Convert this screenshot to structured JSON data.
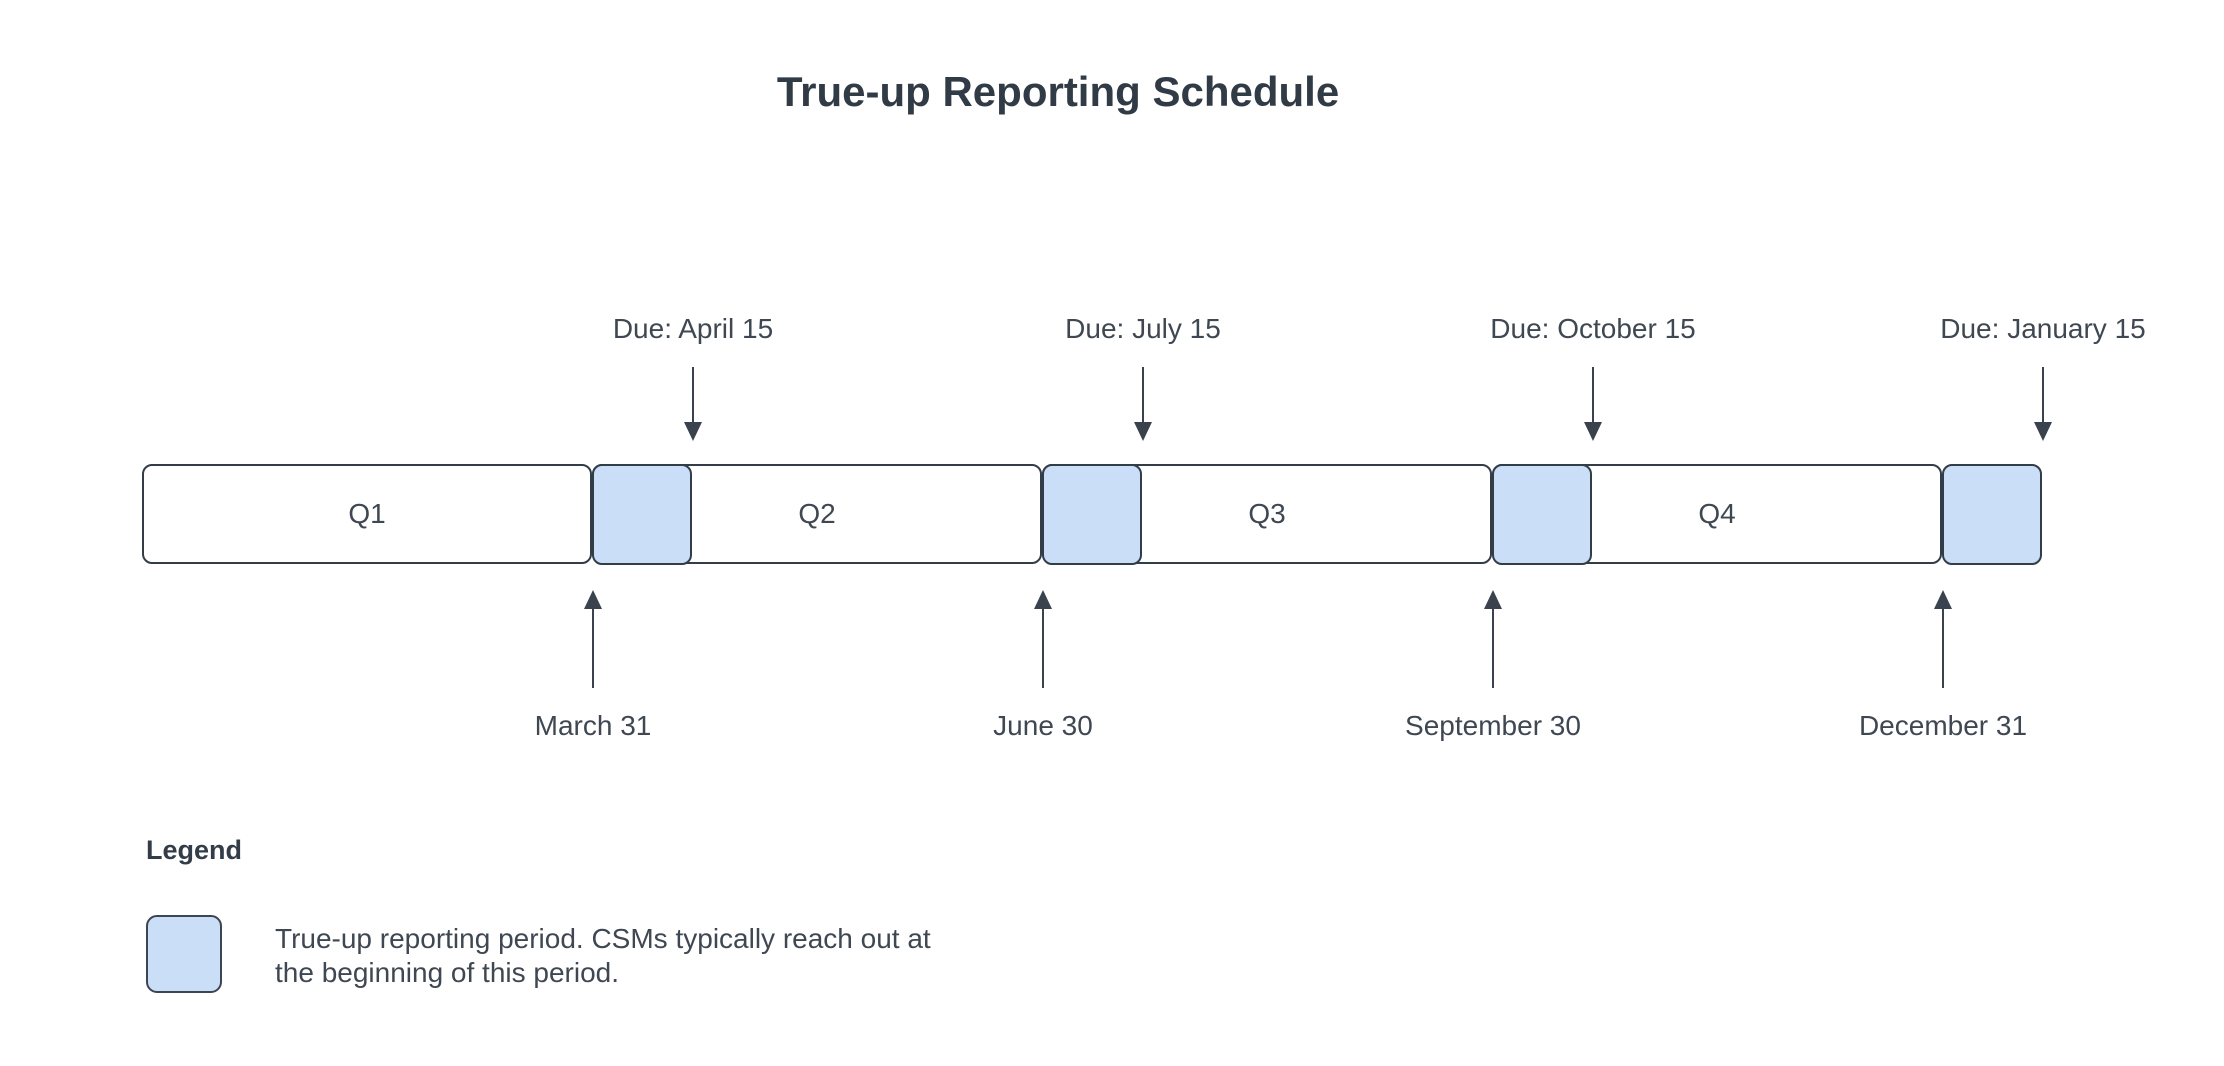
{
  "title": "True-up Reporting Schedule",
  "colors": {
    "background": "#ffffff",
    "period_fill": "#cadef8",
    "stroke": "#333d47",
    "text": "#3f4852"
  },
  "timeline": {
    "quarters": [
      {
        "label": "Q1"
      },
      {
        "label": "Q2"
      },
      {
        "label": "Q3"
      },
      {
        "label": "Q4"
      }
    ],
    "due_labels": [
      {
        "label": "Due: April 15"
      },
      {
        "label": "Due: July 15"
      },
      {
        "label": "Due: October 15"
      },
      {
        "label": "Due: January 15"
      }
    ],
    "end_labels": [
      {
        "label": "March 31"
      },
      {
        "label": "June 30"
      },
      {
        "label": "September 30"
      },
      {
        "label": "December 31"
      }
    ]
  },
  "legend": {
    "title": "Legend",
    "description": "True-up reporting period. CSMs typically reach out at the beginning of this period.",
    "lines": [
      "True-up reporting period. CSMs typically reach out at",
      "the beginning of this period."
    ]
  }
}
